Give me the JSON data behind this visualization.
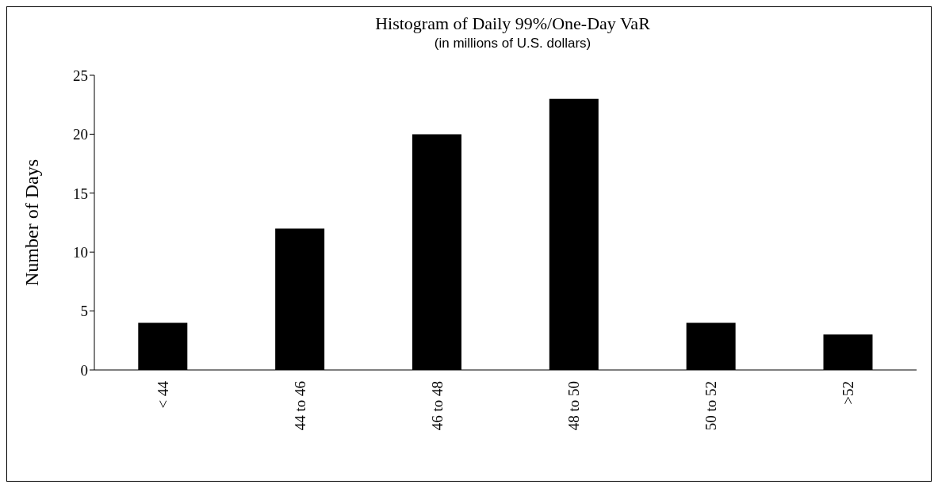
{
  "chart_data": {
    "type": "bar",
    "title": "Histogram of Daily 99%/One-Day VaR",
    "subtitle": "(in millions of U.S. dollars)",
    "ylabel": "Number of Days",
    "categories": [
      "< 44",
      "44 to 46",
      "46 to 48",
      "48 to 50",
      "50 to 52",
      ">52"
    ],
    "values": [
      4,
      12,
      20,
      23,
      4,
      3
    ],
    "color": "#000000",
    "ylim": [
      0,
      25
    ],
    "yticks": [
      0,
      5,
      10,
      15,
      20,
      25
    ]
  }
}
